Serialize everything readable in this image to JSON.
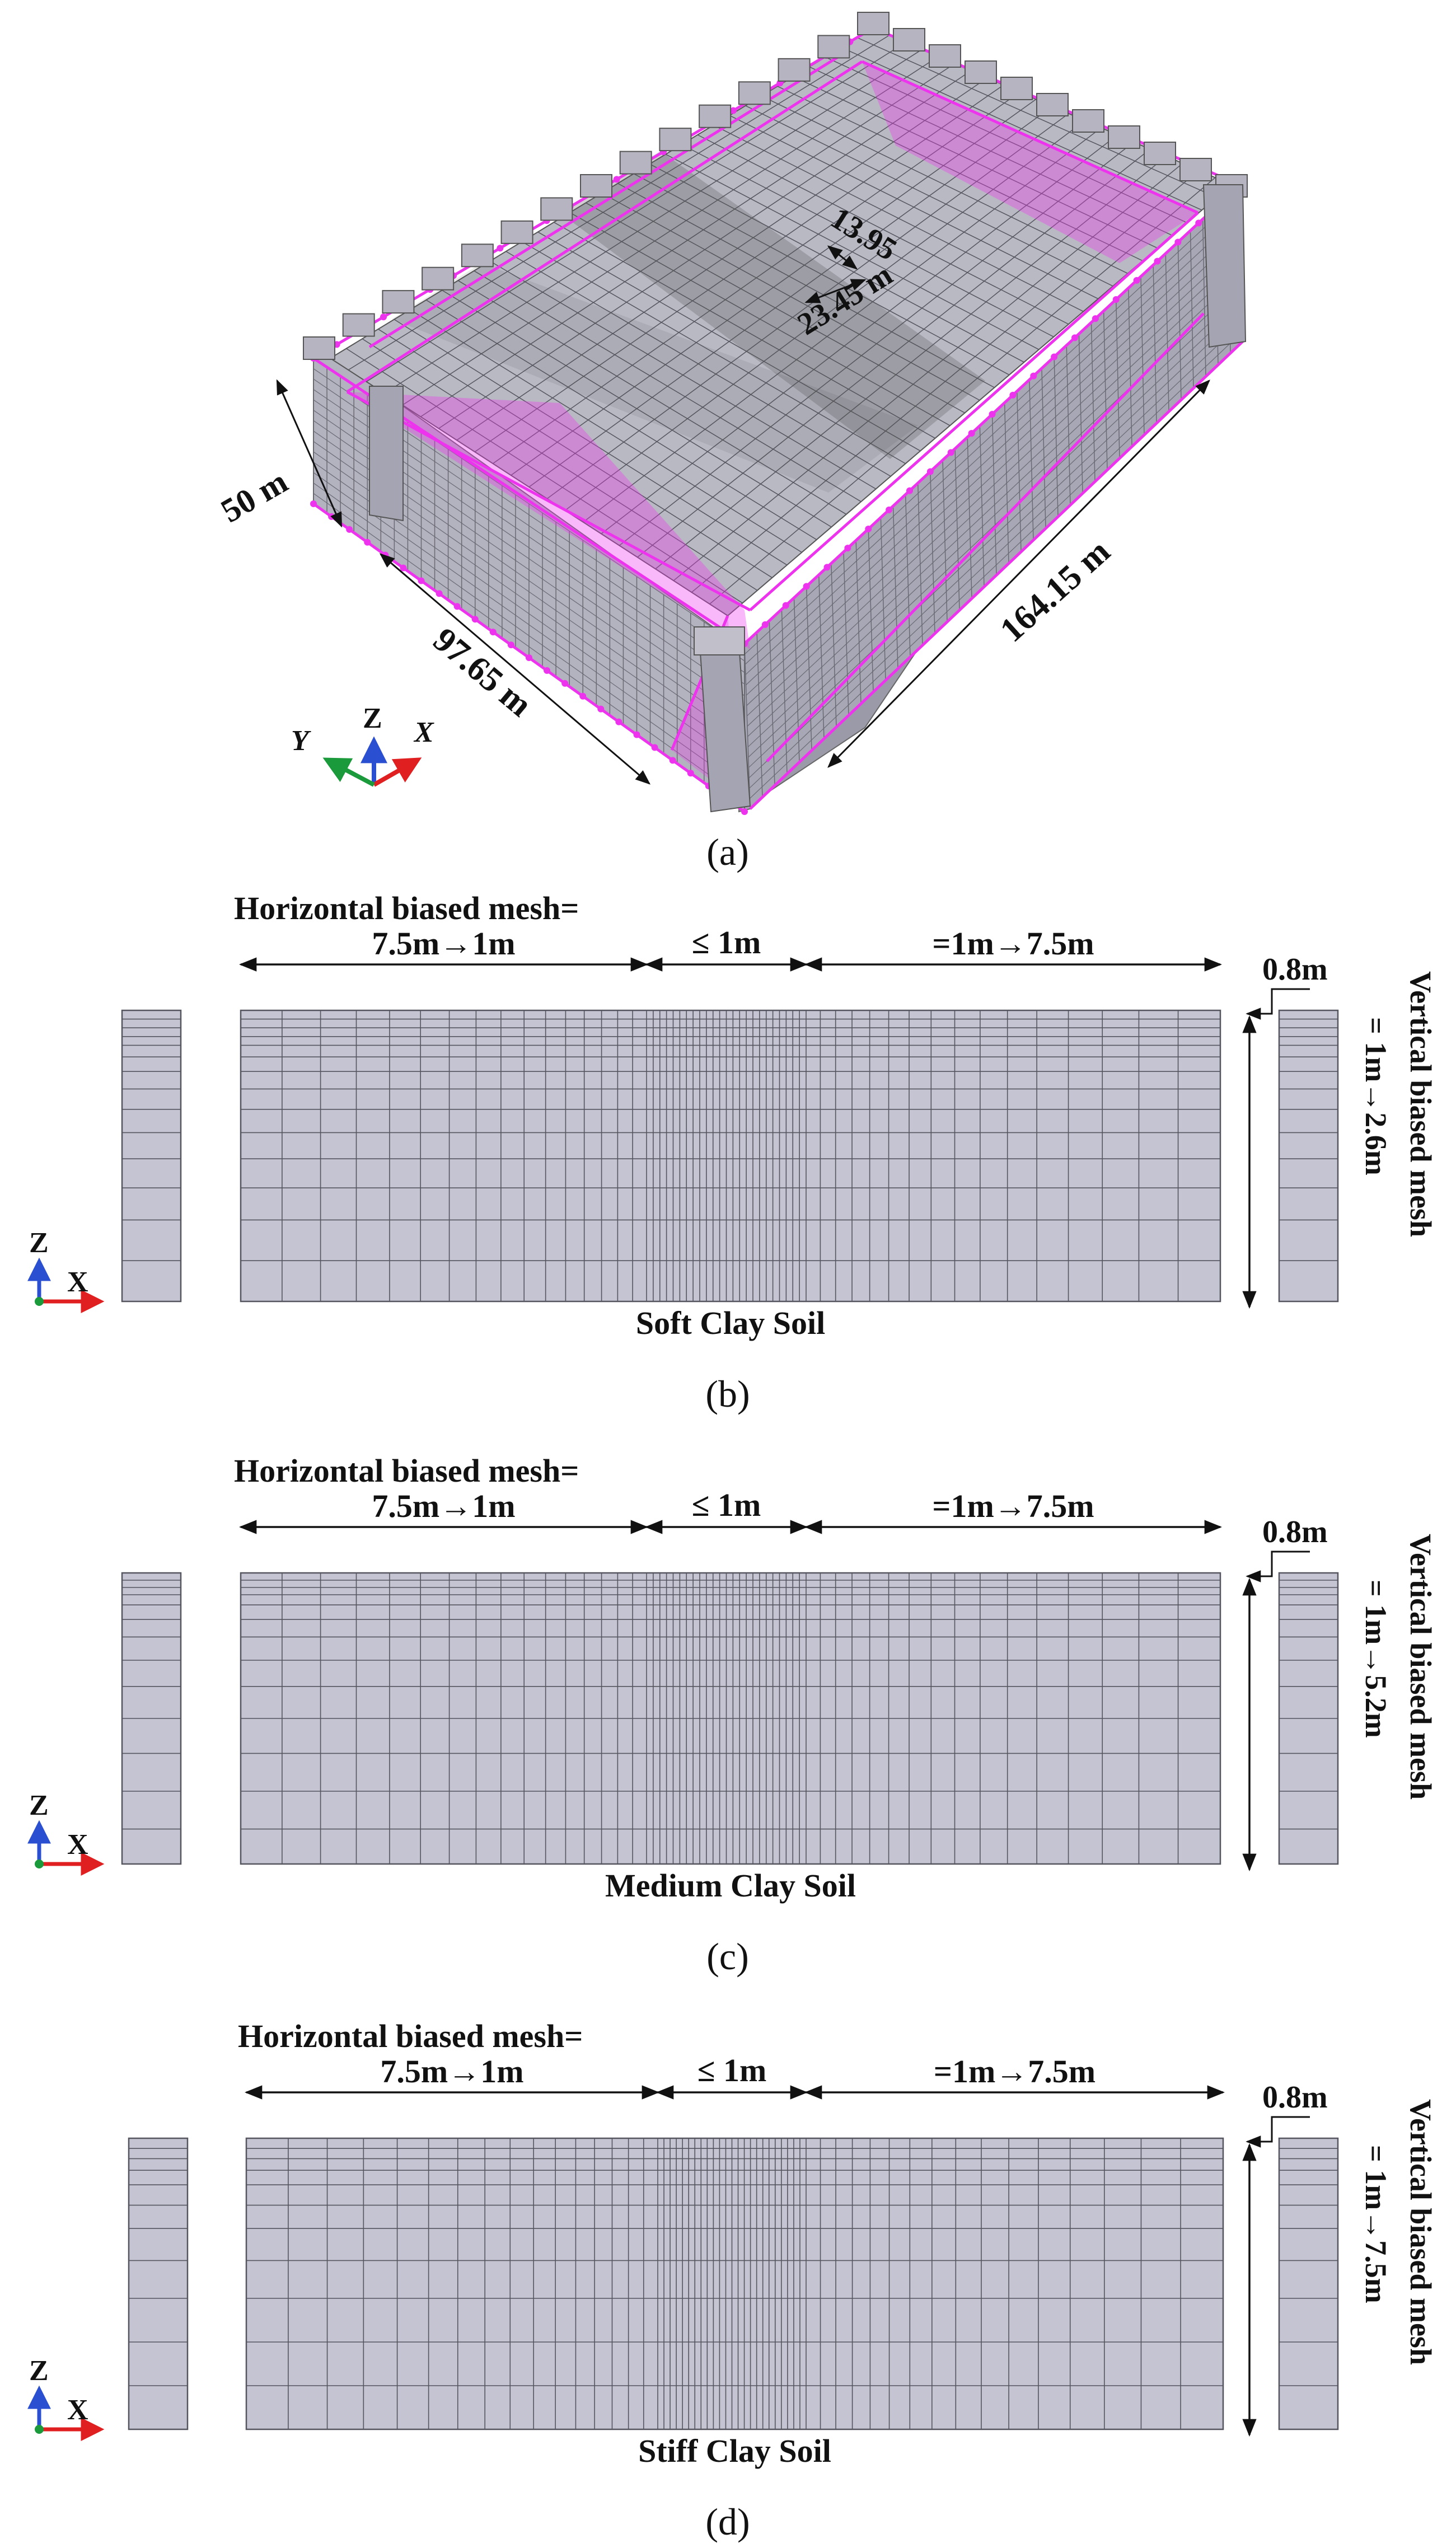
{
  "panel_a": {
    "caption": "(a)",
    "dims": {
      "inner_1": "13.95",
      "inner_2": "23.45 m",
      "depth": "50 m",
      "width": "97.65 m",
      "length": "164.15 m"
    },
    "axes": {
      "x": "X",
      "y": "Y",
      "z": "Z"
    }
  },
  "panels": [
    {
      "caption": "(b)",
      "title": "Horizontal biased mesh=",
      "left_seg": "7.5m→1m",
      "mid_seg": "≤ 1m",
      "right_seg": "=1m→7.5m",
      "top_layer": "0.8m",
      "vertical_label_1": "Vertical biased mesh",
      "vertical_label_2": "= 1m→2.6m",
      "soil": "Soft Clay Soil",
      "axes": {
        "x": "X",
        "z": "Z"
      }
    },
    {
      "caption": "(c)",
      "title": "Horizontal biased mesh=",
      "left_seg": "7.5m→1m",
      "mid_seg": "≤ 1m",
      "right_seg": "=1m→7.5m",
      "top_layer": "0.8m",
      "vertical_label_1": "Vertical biased mesh",
      "vertical_label_2": "= 1m→5.2m",
      "soil": "Medium Clay Soil",
      "axes": {
        "x": "X",
        "z": "Z"
      }
    },
    {
      "caption": "(d)",
      "title": "Horizontal biased mesh=",
      "left_seg": "7.5m→1m",
      "mid_seg": "≤ 1m",
      "right_seg": "=1m→7.5m",
      "top_layer": "0.8m",
      "vertical_label_1": "Vertical biased mesh",
      "vertical_label_2": "= 1m→7.5m",
      "soil": "Stiff Clay Soil",
      "axes": {
        "x": "X",
        "z": "Z"
      }
    }
  ],
  "colors": {
    "mesh_fill": "#c5c4d2",
    "mesh_line": "#55555f",
    "frame": "#ee33ee",
    "slab": "#b9b9c4",
    "axis_x": "#e02020",
    "axis_y": "#1a9a3a",
    "axis_z": "#2a4fd0"
  }
}
